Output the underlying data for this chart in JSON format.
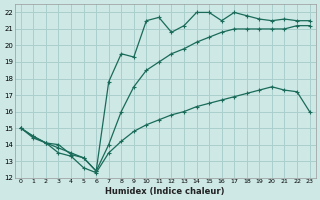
{
  "xlabel": "Humidex (Indice chaleur)",
  "ylabel": "",
  "background_color": "#cde8e5",
  "grid_color": "#aacfcc",
  "line_color": "#1a6b5a",
  "xlim": [
    -0.5,
    23.5
  ],
  "ylim": [
    12,
    22.5
  ],
  "xticks": [
    0,
    1,
    2,
    3,
    4,
    5,
    6,
    7,
    8,
    9,
    10,
    11,
    12,
    13,
    14,
    15,
    16,
    17,
    18,
    19,
    20,
    21,
    22,
    23
  ],
  "yticks": [
    12,
    13,
    14,
    15,
    16,
    17,
    18,
    19,
    20,
    21,
    22
  ],
  "line1_x": [
    0,
    1,
    2,
    3,
    4,
    5,
    6,
    7,
    8,
    9,
    10,
    11,
    12,
    13,
    14,
    15,
    16,
    17,
    18,
    19,
    20,
    21,
    22,
    23
  ],
  "line1_y": [
    15.0,
    14.5,
    14.1,
    13.5,
    13.3,
    12.6,
    12.3,
    13.5,
    14.2,
    14.8,
    15.2,
    15.5,
    15.8,
    16.0,
    16.3,
    16.5,
    16.7,
    16.9,
    17.1,
    17.3,
    17.5,
    17.3,
    17.2,
    16.0
  ],
  "line2_x": [
    0,
    1,
    2,
    3,
    4,
    5,
    6,
    7,
    8,
    9,
    10,
    11,
    12,
    13,
    14,
    15,
    16,
    17,
    18,
    19,
    20,
    21,
    22,
    23
  ],
  "line2_y": [
    15.0,
    14.5,
    14.1,
    13.8,
    13.5,
    13.2,
    12.4,
    14.0,
    16.0,
    17.5,
    18.5,
    19.0,
    19.5,
    19.8,
    20.2,
    20.5,
    20.8,
    21.0,
    21.0,
    21.0,
    21.0,
    21.0,
    21.2,
    21.2
  ],
  "line3_x": [
    0,
    1,
    2,
    3,
    4,
    5,
    6,
    7,
    8,
    9,
    10,
    11,
    12,
    13,
    14,
    15,
    16,
    17,
    18,
    19,
    20,
    21,
    22,
    23
  ],
  "line3_y": [
    15.0,
    14.4,
    14.1,
    14.0,
    13.4,
    13.2,
    12.4,
    17.8,
    19.5,
    19.3,
    21.5,
    21.7,
    20.8,
    21.2,
    22.0,
    22.0,
    21.5,
    22.0,
    21.8,
    21.6,
    21.5,
    21.6,
    21.5,
    21.5
  ]
}
